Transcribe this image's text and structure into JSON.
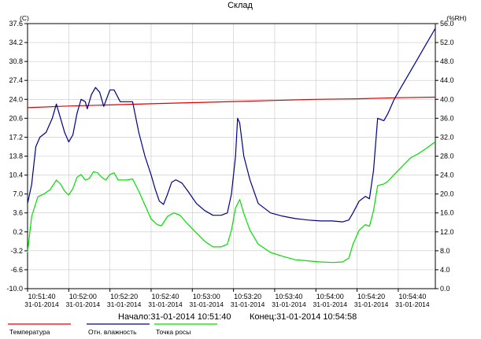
{
  "chart_data": {
    "type": "line",
    "title": "Склад",
    "y_left_label": "(C)",
    "y_right_label": "(%RH)",
    "y_left_ticks": [
      "37.6",
      "34.2",
      "30.8",
      "27.4",
      "24.0",
      "20.6",
      "17.2",
      "13.8",
      "10.4",
      "7.0",
      "3.6",
      "0.2",
      "-3.2",
      "-6.6",
      "-10.0"
    ],
    "y_left_range": [
      -10.0,
      37.6
    ],
    "y_right_ticks": [
      "56.0",
      "52.0",
      "48.0",
      "44.0",
      "40.0",
      "36.0",
      "32.0",
      "28.0",
      "24.0",
      "20.0",
      "16.0",
      "12.0",
      "8.0",
      "4.0",
      "0.0"
    ],
    "y_right_range": [
      0.0,
      56.0
    ],
    "x_range": [
      0,
      198
    ],
    "x_ticks": [
      {
        "t": 0,
        "time": "10:51:40",
        "date": "31-01-2014"
      },
      {
        "t": 20,
        "time": "10:52:00",
        "date": "31-01-2014"
      },
      {
        "t": 40,
        "time": "10:52:20",
        "date": "31-01-2014"
      },
      {
        "t": 60,
        "time": "10:52:40",
        "date": "31-01-2014"
      },
      {
        "t": 80,
        "time": "10:53:00",
        "date": "31-01-2014"
      },
      {
        "t": 100,
        "time": "10:53:20",
        "date": "31-01-2014"
      },
      {
        "t": 120,
        "time": "10:53:40",
        "date": "31-01-2014"
      },
      {
        "t": 140,
        "time": "10:54:00",
        "date": "31-01-2014"
      },
      {
        "t": 160,
        "time": "10:54:20",
        "date": "31-01-2014"
      },
      {
        "t": 180,
        "time": "10:54:40",
        "date": "31-01-2014"
      }
    ],
    "series": [
      {
        "name": "Температура",
        "axis": "left",
        "color": "#e00000",
        "points": [
          [
            0,
            22.5
          ],
          [
            20,
            22.8
          ],
          [
            40,
            23.0
          ],
          [
            60,
            23.2
          ],
          [
            80,
            23.4
          ],
          [
            100,
            23.6
          ],
          [
            120,
            23.8
          ],
          [
            140,
            24.0
          ],
          [
            160,
            24.1
          ],
          [
            180,
            24.3
          ],
          [
            198,
            24.4
          ]
        ]
      },
      {
        "name": "Отн. влажность",
        "axis": "right",
        "color": "#00008b",
        "points": [
          [
            0,
            18
          ],
          [
            2,
            22
          ],
          [
            4,
            30
          ],
          [
            6,
            32
          ],
          [
            9,
            33
          ],
          [
            12,
            36
          ],
          [
            14,
            39
          ],
          [
            16,
            36
          ],
          [
            18,
            33
          ],
          [
            20,
            31
          ],
          [
            22,
            32.5
          ],
          [
            24,
            37
          ],
          [
            26,
            40
          ],
          [
            28,
            39.5
          ],
          [
            29,
            38
          ],
          [
            31,
            41
          ],
          [
            33,
            42.5
          ],
          [
            35,
            41.5
          ],
          [
            37,
            38.5
          ],
          [
            40,
            42
          ],
          [
            42,
            42
          ],
          [
            45,
            39.5
          ],
          [
            48,
            39.5
          ],
          [
            51,
            39.5
          ],
          [
            54,
            33
          ],
          [
            57,
            28
          ],
          [
            60,
            24
          ],
          [
            62,
            21
          ],
          [
            64,
            18.5
          ],
          [
            66,
            17.8
          ],
          [
            68,
            20
          ],
          [
            70,
            22.5
          ],
          [
            72,
            23
          ],
          [
            75,
            22.3
          ],
          [
            78,
            20.5
          ],
          [
            82,
            18
          ],
          [
            86,
            16.5
          ],
          [
            90,
            15.5
          ],
          [
            94,
            15.5
          ],
          [
            97,
            16
          ],
          [
            99,
            20
          ],
          [
            101,
            28
          ],
          [
            102,
            36
          ],
          [
            103,
            35
          ],
          [
            105,
            28
          ],
          [
            108,
            23
          ],
          [
            112,
            18
          ],
          [
            118,
            16
          ],
          [
            124,
            15.3
          ],
          [
            130,
            14.8
          ],
          [
            136,
            14.5
          ],
          [
            142,
            14.3
          ],
          [
            148,
            14.3
          ],
          [
            153,
            14.1
          ],
          [
            156,
            14.5
          ],
          [
            158,
            16
          ],
          [
            161,
            18.5
          ],
          [
            164,
            19.5
          ],
          [
            166,
            19
          ],
          [
            168,
            25
          ],
          [
            170,
            36
          ],
          [
            173,
            35.5
          ],
          [
            175,
            37
          ],
          [
            178,
            40
          ],
          [
            182,
            43
          ],
          [
            186,
            46
          ],
          [
            190,
            49
          ],
          [
            194,
            52
          ],
          [
            198,
            55
          ]
        ]
      },
      {
        "name": "Точка росы",
        "axis": "left",
        "color": "#00e000",
        "points": [
          [
            0,
            -3.5
          ],
          [
            2,
            3
          ],
          [
            5,
            6.5
          ],
          [
            8,
            7
          ],
          [
            11,
            7.8
          ],
          [
            14,
            9.5
          ],
          [
            16,
            8.8
          ],
          [
            18,
            7.5
          ],
          [
            20,
            6.8
          ],
          [
            22,
            8
          ],
          [
            24,
            10
          ],
          [
            26,
            10.5
          ],
          [
            28,
            9.5
          ],
          [
            30,
            9.8
          ],
          [
            32,
            11
          ],
          [
            34,
            10.8
          ],
          [
            36,
            10
          ],
          [
            38,
            9.5
          ],
          [
            40,
            10.5
          ],
          [
            42,
            10.8
          ],
          [
            44,
            9.5
          ],
          [
            48,
            9.5
          ],
          [
            51,
            9.7
          ],
          [
            54,
            7.5
          ],
          [
            57,
            5
          ],
          [
            60,
            2.5
          ],
          [
            63,
            1.5
          ],
          [
            65,
            1.3
          ],
          [
            68,
            3
          ],
          [
            71,
            3.6
          ],
          [
            74,
            3.2
          ],
          [
            78,
            1.5
          ],
          [
            82,
            0
          ],
          [
            86,
            -1.5
          ],
          [
            90,
            -2.5
          ],
          [
            94,
            -2.5
          ],
          [
            97,
            -2
          ],
          [
            99,
            0.5
          ],
          [
            101,
            4.5
          ],
          [
            103,
            6
          ],
          [
            105,
            3.5
          ],
          [
            108,
            0.5
          ],
          [
            112,
            -2
          ],
          [
            118,
            -3.5
          ],
          [
            124,
            -4.2
          ],
          [
            130,
            -4.8
          ],
          [
            136,
            -5
          ],
          [
            142,
            -5.2
          ],
          [
            148,
            -5.3
          ],
          [
            153,
            -5.2
          ],
          [
            156,
            -4.5
          ],
          [
            158,
            -2
          ],
          [
            161,
            0.5
          ],
          [
            164,
            1.5
          ],
          [
            166,
            1.2
          ],
          [
            168,
            4
          ],
          [
            170,
            8.5
          ],
          [
            173,
            8.8
          ],
          [
            175,
            9.3
          ],
          [
            178,
            10.5
          ],
          [
            182,
            12
          ],
          [
            186,
            13.5
          ],
          [
            190,
            14.3
          ],
          [
            194,
            15.3
          ],
          [
            198,
            16.4
          ]
        ]
      }
    ]
  },
  "range_text": {
    "start_label": "Начало:",
    "start_value": "31-01-2014 10:51:40",
    "end_label": "Конец:",
    "end_value": "31-01-2014 10:54:58"
  }
}
